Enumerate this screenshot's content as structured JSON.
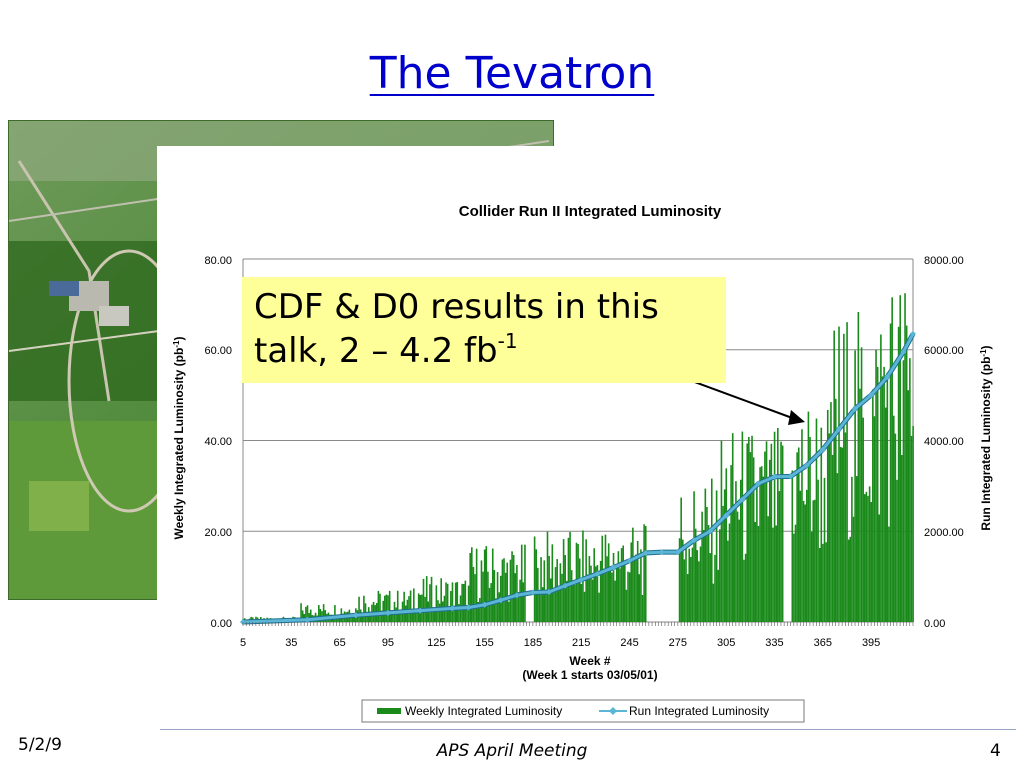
{
  "slide": {
    "title": "The Tevatron",
    "callout_line1": "CDF & D0 results in this",
    "callout_line2": "talk, 2 – 4.2 fb",
    "callout_sup": "-1",
    "footer_date": "5/2/9",
    "footer_center": "APS April Meeting",
    "footer_page": "4"
  },
  "photo": {
    "description_icon": "aerial-photo-icon"
  },
  "colors": {
    "bar": "#1a8a1a",
    "line": "#5bb6d6",
    "line_dark": "#1f6f8f",
    "title": "#0000cc",
    "callout": "#ffff99"
  },
  "chart_data": {
    "type": "bar",
    "title": "Collider Run II Integrated Luminosity",
    "xlabel": "Week #",
    "xlabel2": "(Week 1 starts 03/05/01)",
    "ylabel": "Weekly Integrated Luminosity (pb",
    "ylabel_sup": "-1",
    "ylabel_end": ")",
    "y2label": "Run Integrated Luminosity (pb",
    "y2label_sup": "-1",
    "y2label_end": ")",
    "ylim": [
      0,
      80
    ],
    "y2lim": [
      0,
      8000
    ],
    "yticks": [
      "0.00",
      "20.00",
      "40.00",
      "60.00",
      "80.00"
    ],
    "y2ticks": [
      "0.00",
      "2000.00",
      "4000.00",
      "6000.00",
      "8000.00"
    ],
    "xticks": [
      "5",
      "35",
      "65",
      "95",
      "125",
      "155",
      "185",
      "215",
      "245",
      "275",
      "305",
      "335",
      "365",
      "395"
    ],
    "xtick_values": [
      5,
      35,
      65,
      95,
      125,
      155,
      185,
      215,
      245,
      275,
      305,
      335,
      365,
      395
    ],
    "xlim": [
      5,
      421
    ],
    "grid": true,
    "legend_position": "bottom",
    "series": [
      {
        "name": "Weekly Integrated Luminosity",
        "kind": "bar",
        "segments": [
          {
            "start": 5,
            "end": 40,
            "level": 0.8
          },
          {
            "start": 41,
            "end": 75,
            "level": 3
          },
          {
            "start": 76,
            "end": 110,
            "level": 5
          },
          {
            "start": 111,
            "end": 145,
            "level": 7
          },
          {
            "start": 146,
            "end": 180,
            "level": 12
          },
          {
            "start": 186,
            "end": 225,
            "level": 14
          },
          {
            "start": 226,
            "end": 255,
            "level": 15
          },
          {
            "start": 276,
            "end": 300,
            "level": 22
          },
          {
            "start": 301,
            "end": 340,
            "level": 30
          },
          {
            "start": 346,
            "end": 370,
            "level": 35
          },
          {
            "start": 371,
            "end": 400,
            "level": 48
          },
          {
            "start": 401,
            "end": 421,
            "level": 55
          }
        ]
      },
      {
        "name": "Run Integrated Luminosity",
        "kind": "line",
        "x": [
          5,
          45,
          75,
          95,
          115,
          135,
          145,
          155,
          165,
          175,
          185,
          195,
          205,
          215,
          225,
          235,
          245,
          255,
          265,
          275,
          285,
          295,
          305,
          315,
          325,
          335,
          345,
          355,
          365,
          375,
          385,
          395,
          405,
          415,
          421
        ],
        "y": [
          0,
          50,
          150,
          200,
          250,
          300,
          320,
          380,
          480,
          590,
          650,
          660,
          800,
          930,
          1060,
          1200,
          1350,
          1520,
          1540,
          1540,
          1800,
          2000,
          2350,
          2700,
          3050,
          3200,
          3210,
          3450,
          3800,
          4250,
          4700,
          5000,
          5400,
          5950,
          6350
        ]
      }
    ]
  }
}
